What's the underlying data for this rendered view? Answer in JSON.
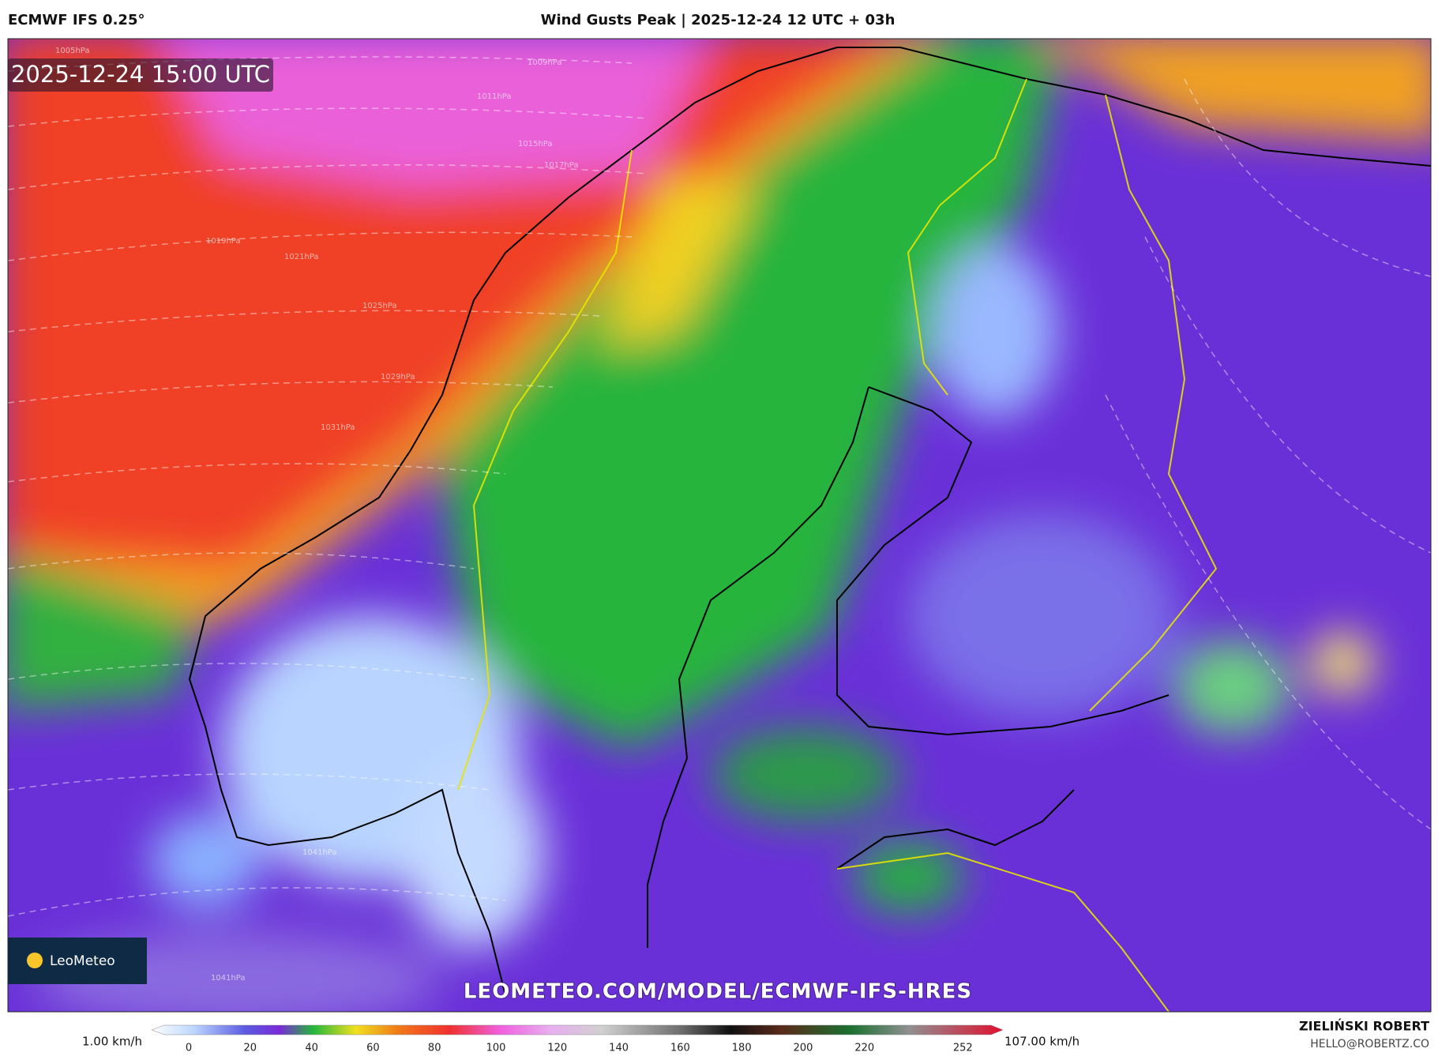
{
  "header": {
    "model": "ECMWF IFS 0.25°",
    "title": "Wind Gusts Peak | 2025-12-24 12 UTC + 03h"
  },
  "map": {
    "valid_time": "2025-12-24 15:00 UTC",
    "logo": "LeoMeteo",
    "watermark": "LEOMETEO.COM/MODEL/ECMWF-IFS-HRES",
    "isobar_labels": [
      "1005hPa",
      "1009hPa",
      "1011hPa",
      "1015hPa",
      "1017hPa",
      "1019hPa",
      "1021hPa",
      "1025hPa",
      "1029hPa",
      "1031hPa",
      "1041hPa",
      "1041hPa"
    ]
  },
  "colorbar": {
    "min_label": "1.00 km/h",
    "max_label": "107.00 km/h",
    "ticks": [
      0,
      20,
      40,
      60,
      80,
      100,
      120,
      140,
      160,
      180,
      200,
      220,
      252
    ]
  },
  "credits": {
    "author": "ZIELIŃSKI ROBERT",
    "email": "HELLO@ROBERTZ.CO"
  }
}
